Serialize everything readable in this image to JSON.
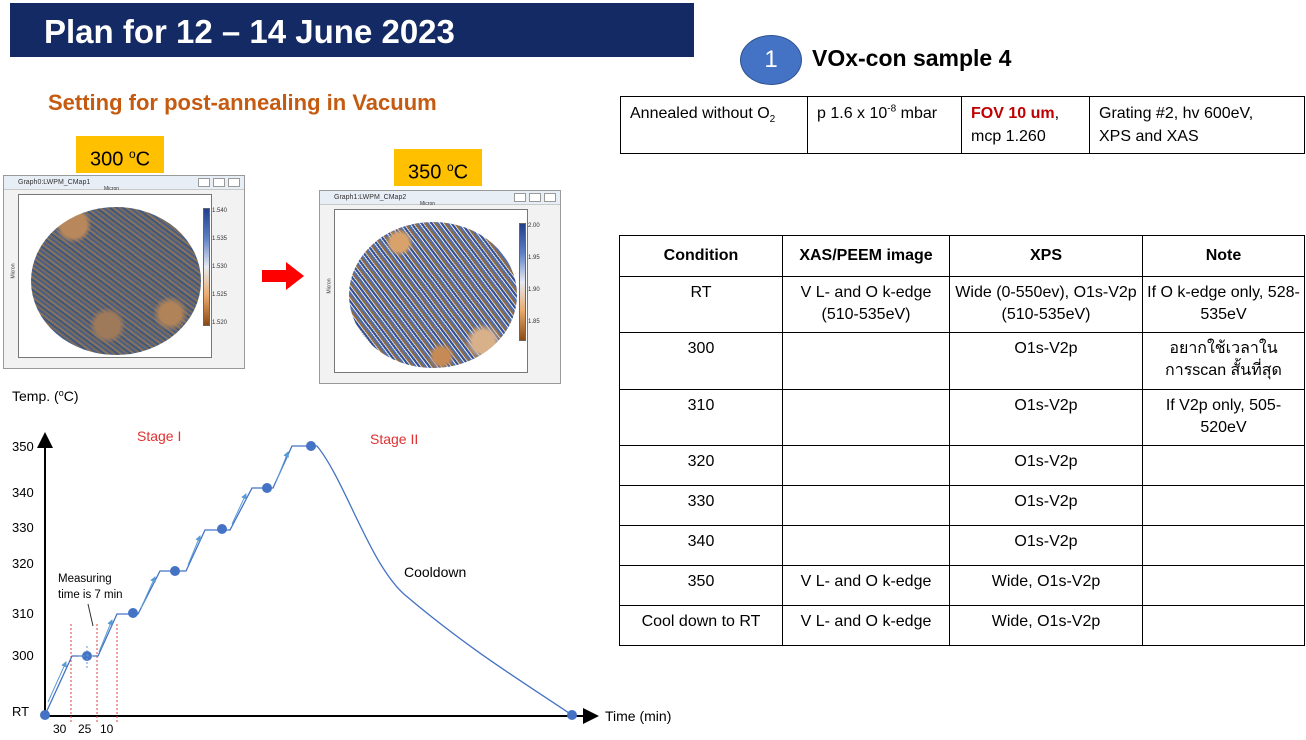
{
  "header": {
    "title": "Plan for 12 – 14 June 2023",
    "badge_number": "1",
    "sample_title": "VOx-con sample 4"
  },
  "setting": {
    "title": "Setting for post-annealing in Vacuum",
    "label1_value": "300",
    "label1_unit": "C",
    "label2_value": "350",
    "label2_unit": "C",
    "window1": {
      "title": "Graph0:LWPM_CMap1",
      "top_axis_label": "Micron",
      "side_axis_label": "Micron",
      "colorbar_ticks": [
        "1.540",
        "1.535",
        "1.530",
        "1.525",
        "1.520"
      ]
    },
    "window2": {
      "title": "Graph1:LWPM_CMap2",
      "top_axis_label": "Micron",
      "side_axis_label": "Micron",
      "colorbar_ticks": [
        "2.00",
        "1.95",
        "1.90",
        "1.85"
      ]
    }
  },
  "conditions_table": {
    "c1": "Annealed without O",
    "c1_sub": "2",
    "c2_pre": "p 1.6 x 10",
    "c2_sup": "-8",
    "c2_post": " mbar",
    "c3_fov": "FOV 10 um",
    "c3_comma": ",",
    "c3_mcp": "mcp 1.260",
    "c4_line1": "Grating #2, hv 600eV,",
    "c4_line2": "XPS and XAS"
  },
  "plan_table": {
    "headers": [
      "Condition",
      "XAS/PEEM image",
      "XPS",
      "Note"
    ],
    "rows": [
      {
        "condition": "RT",
        "xas": "V L- and O k-edge (510-535eV)",
        "xps": "Wide (0-550ev), O1s-V2p (510-535eV)",
        "note": "If O k-edge only, 528-535eV"
      },
      {
        "condition": "300",
        "xas": "",
        "xps": "O1s-V2p",
        "note": "อยากใช้เวลาในการscan สั้นที่สุด"
      },
      {
        "condition": "310",
        "xas": "",
        "xps": "O1s-V2p",
        "note": "If V2p only, 505-520eV"
      },
      {
        "condition": "320",
        "xas": "",
        "xps": "O1s-V2p",
        "note": ""
      },
      {
        "condition": "330",
        "xas": "",
        "xps": "O1s-V2p",
        "note": ""
      },
      {
        "condition": "340",
        "xas": "",
        "xps": "O1s-V2p",
        "note": ""
      },
      {
        "condition": "350",
        "xas": "V L- and O k-edge",
        "xps": "Wide, O1s-V2p",
        "note": ""
      },
      {
        "condition": "Cool down to RT",
        "xas": "V L- and O k-edge",
        "xps": "Wide, O1s-V2p",
        "note": ""
      }
    ]
  },
  "chart_data": {
    "type": "line",
    "ylabel_pre": "Temp. (",
    "ylabel_sup": "o",
    "ylabel_post": "C)",
    "xlabel": "Time (min)",
    "y_ticks": [
      "RT",
      "300",
      "310",
      "320",
      "330",
      "340",
      "350"
    ],
    "x_interval_labels": [
      "30",
      "25",
      "10"
    ],
    "stage_labels": [
      "Stage I",
      "Stage II"
    ],
    "annotation_measuring": [
      "Measuring",
      "time is 7 min"
    ],
    "annotation_cooldown": "Cooldown",
    "profile_points": [
      {
        "temp": "RT",
        "desc": "start"
      },
      {
        "temp": 300,
        "desc": "hold"
      },
      {
        "temp": 310,
        "desc": "hold"
      },
      {
        "temp": 320,
        "desc": "hold"
      },
      {
        "temp": 330,
        "desc": "hold"
      },
      {
        "temp": 340,
        "desc": "hold"
      },
      {
        "temp": 350,
        "desc": "hold"
      },
      {
        "temp": "RT",
        "desc": "cooldown end"
      }
    ]
  }
}
